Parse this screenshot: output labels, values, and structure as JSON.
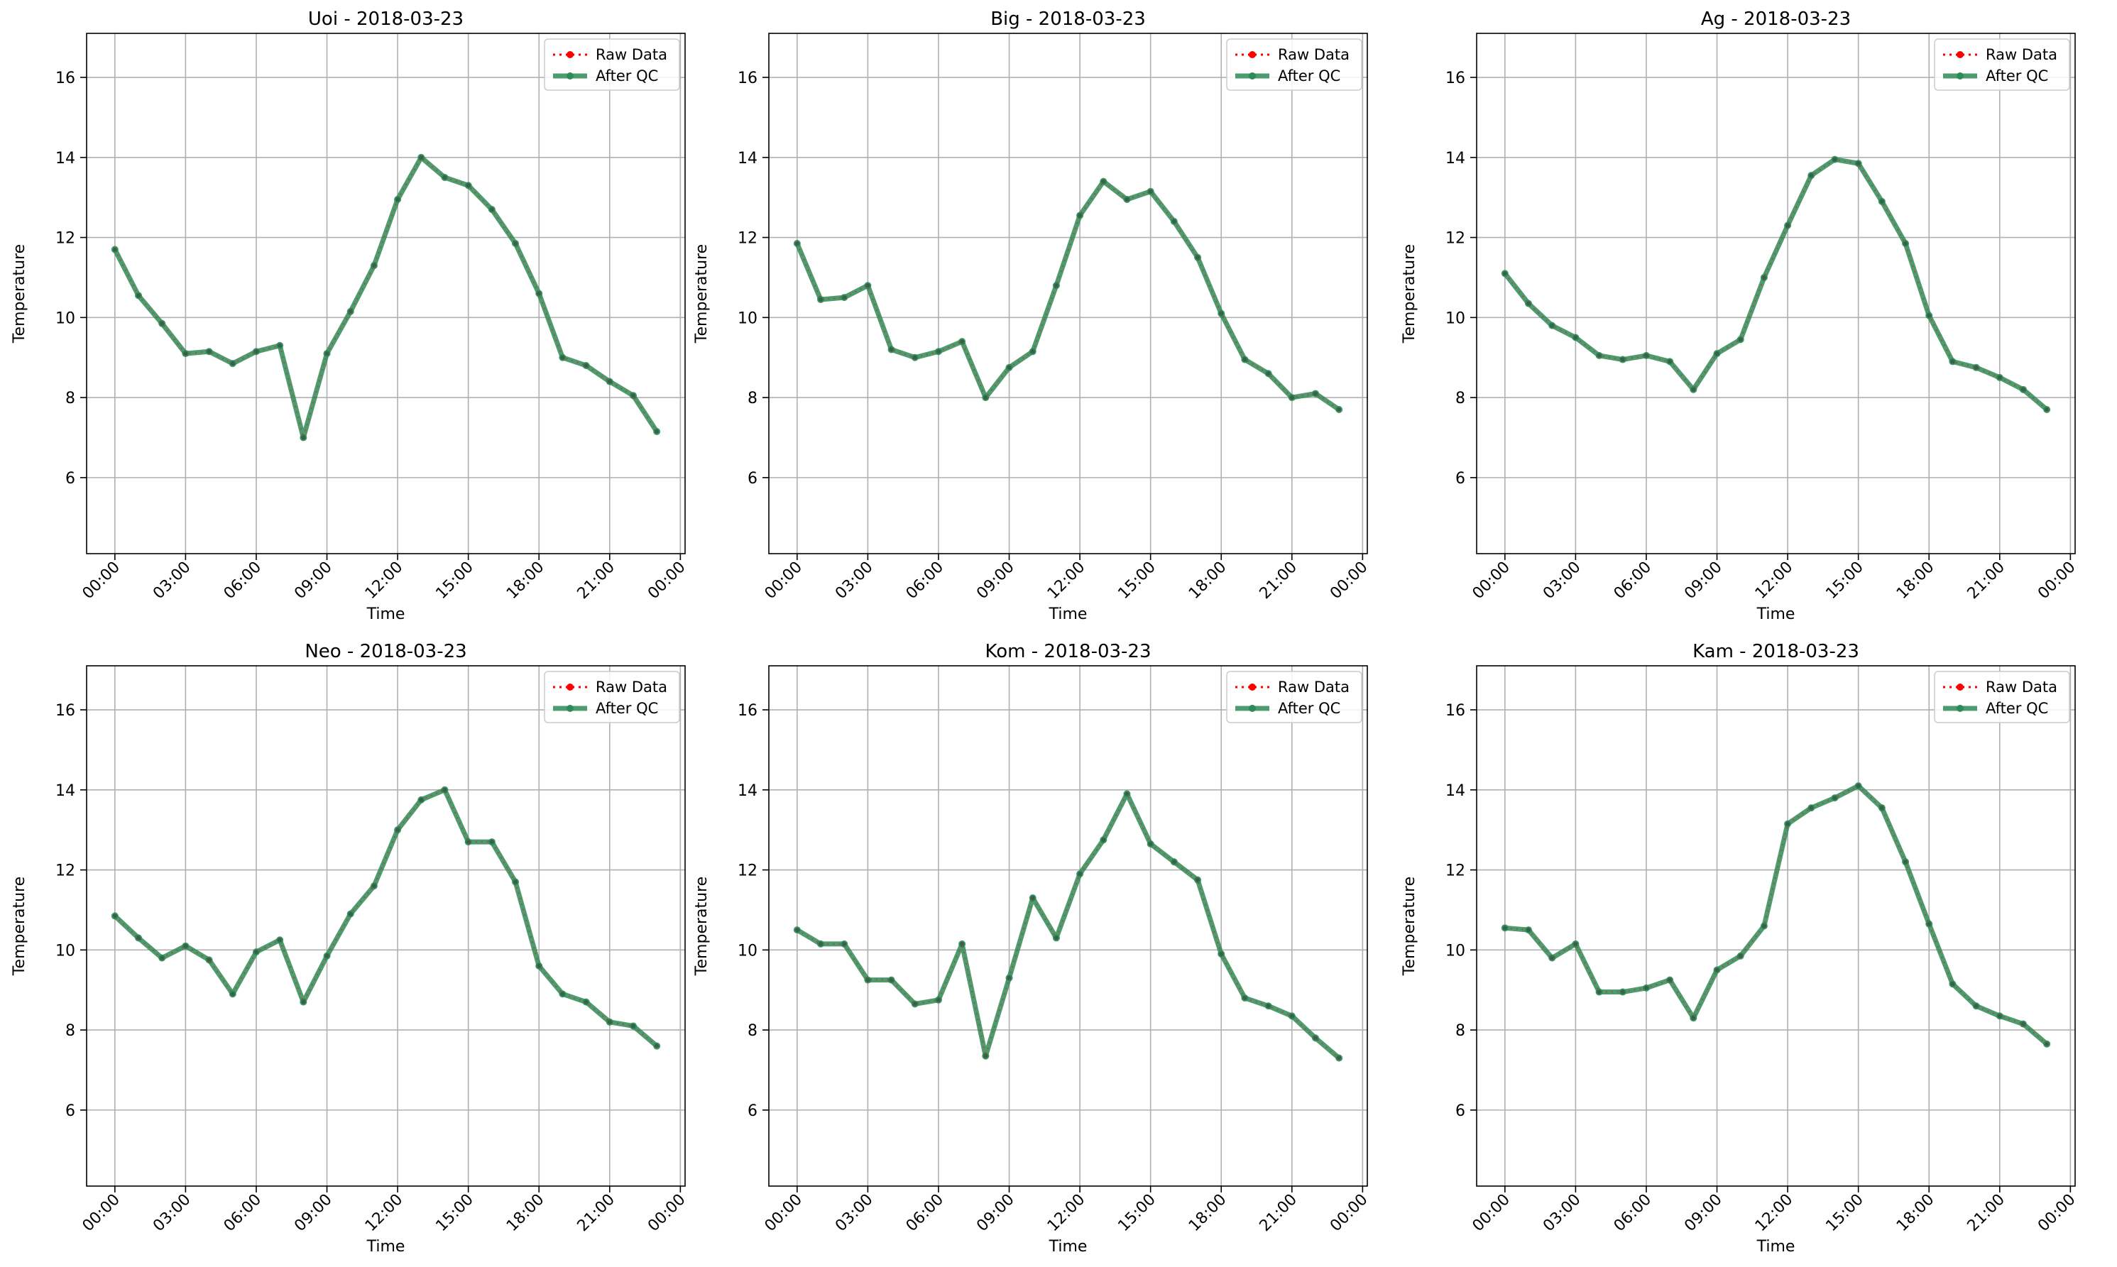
{
  "chart_data": [
    {
      "type": "line",
      "title": "Uoi - 2018-03-23",
      "xlabel": "Time",
      "ylabel": "Temperature",
      "ylim": [
        4.1,
        17.1
      ],
      "y_ticks": [
        6,
        8,
        10,
        12,
        14,
        16
      ],
      "xlim_hours": [
        -1.2,
        24.2
      ],
      "x_ticks": [
        "00:00",
        "03:00",
        "06:00",
        "09:00",
        "12:00",
        "15:00",
        "18:00",
        "21:00",
        "00:00"
      ],
      "grid": true,
      "legend_position": "top-right",
      "x_hours": [
        0,
        1,
        2,
        3,
        4,
        5,
        6,
        7,
        8,
        9,
        10,
        11,
        12,
        13,
        14,
        15,
        16,
        17,
        18,
        19,
        20,
        21,
        22,
        23
      ],
      "series": [
        {
          "name": "Raw Data",
          "values": [
            11.7,
            10.55,
            9.85,
            9.1,
            9.15,
            8.85,
            9.15,
            9.3,
            7.0,
            9.1,
            10.15,
            11.3,
            12.95,
            14.0,
            13.5,
            13.3,
            12.7,
            11.85,
            10.6,
            9.0,
            8.8,
            8.4,
            8.05,
            7.15
          ]
        },
        {
          "name": "After QC",
          "values": [
            11.7,
            10.55,
            9.85,
            9.1,
            9.15,
            8.85,
            9.15,
            9.3,
            7.0,
            9.1,
            10.15,
            11.3,
            12.95,
            14.0,
            13.5,
            13.3,
            12.7,
            11.85,
            10.6,
            9.0,
            8.8,
            8.4,
            8.05,
            7.15
          ]
        }
      ]
    },
    {
      "type": "line",
      "title": "Big - 2018-03-23",
      "xlabel": "Time",
      "ylabel": "Temperature",
      "ylim": [
        4.1,
        17.1
      ],
      "y_ticks": [
        6,
        8,
        10,
        12,
        14,
        16
      ],
      "xlim_hours": [
        -1.2,
        24.2
      ],
      "x_ticks": [
        "00:00",
        "03:00",
        "06:00",
        "09:00",
        "12:00",
        "15:00",
        "18:00",
        "21:00",
        "00:00"
      ],
      "grid": true,
      "legend_position": "top-right",
      "x_hours": [
        0,
        1,
        2,
        3,
        4,
        5,
        6,
        7,
        8,
        9,
        10,
        11,
        12,
        13,
        14,
        15,
        16,
        17,
        18,
        19,
        20,
        21,
        22,
        23
      ],
      "series": [
        {
          "name": "Raw Data",
          "values": [
            11.85,
            10.45,
            10.5,
            10.8,
            9.2,
            9.0,
            9.15,
            9.4,
            8.0,
            8.75,
            9.15,
            10.8,
            12.55,
            13.4,
            12.95,
            13.15,
            12.4,
            11.5,
            10.1,
            8.95,
            8.6,
            8.0,
            8.1,
            7.7
          ]
        },
        {
          "name": "After QC",
          "values": [
            11.85,
            10.45,
            10.5,
            10.8,
            9.2,
            9.0,
            9.15,
            9.4,
            8.0,
            8.75,
            9.15,
            10.8,
            12.55,
            13.4,
            12.95,
            13.15,
            12.4,
            11.5,
            10.1,
            8.95,
            8.6,
            8.0,
            8.1,
            7.7
          ]
        }
      ]
    },
    {
      "type": "line",
      "title": "Ag - 2018-03-23",
      "xlabel": "Time",
      "ylabel": "Temperature",
      "ylim": [
        4.1,
        17.1
      ],
      "y_ticks": [
        6,
        8,
        10,
        12,
        14,
        16
      ],
      "xlim_hours": [
        -1.2,
        24.2
      ],
      "x_ticks": [
        "00:00",
        "03:00",
        "06:00",
        "09:00",
        "12:00",
        "15:00",
        "18:00",
        "21:00",
        "00:00"
      ],
      "grid": true,
      "legend_position": "top-right",
      "x_hours": [
        0,
        1,
        2,
        3,
        4,
        5,
        6,
        7,
        8,
        9,
        10,
        11,
        12,
        13,
        14,
        15,
        16,
        17,
        18,
        19,
        20,
        21,
        22,
        23
      ],
      "series": [
        {
          "name": "Raw Data",
          "values": [
            11.1,
            10.35,
            9.8,
            9.5,
            9.05,
            8.95,
            9.05,
            8.9,
            8.2,
            9.1,
            9.45,
            11.0,
            12.3,
            13.55,
            13.95,
            13.85,
            12.9,
            11.85,
            10.05,
            8.9,
            8.75,
            8.5,
            8.2,
            7.7
          ]
        },
        {
          "name": "After QC",
          "values": [
            11.1,
            10.35,
            9.8,
            9.5,
            9.05,
            8.95,
            9.05,
            8.9,
            8.2,
            9.1,
            9.45,
            11.0,
            12.3,
            13.55,
            13.95,
            13.85,
            12.9,
            11.85,
            10.05,
            8.9,
            8.75,
            8.5,
            8.2,
            7.7
          ]
        }
      ]
    },
    {
      "type": "line",
      "title": "Neo - 2018-03-23",
      "xlabel": "Time",
      "ylabel": "Temperature",
      "ylim": [
        4.1,
        17.1
      ],
      "y_ticks": [
        6,
        8,
        10,
        12,
        14,
        16
      ],
      "xlim_hours": [
        -1.2,
        24.2
      ],
      "x_ticks": [
        "00:00",
        "03:00",
        "06:00",
        "09:00",
        "12:00",
        "15:00",
        "18:00",
        "21:00",
        "00:00"
      ],
      "grid": true,
      "legend_position": "top-right",
      "x_hours": [
        0,
        1,
        2,
        3,
        4,
        5,
        6,
        7,
        8,
        9,
        10,
        11,
        12,
        13,
        14,
        15,
        16,
        17,
        18,
        19,
        20,
        21,
        22,
        23
      ],
      "series": [
        {
          "name": "Raw Data",
          "values": [
            10.85,
            10.3,
            9.8,
            10.1,
            9.75,
            8.9,
            9.95,
            10.25,
            8.7,
            9.85,
            10.9,
            11.6,
            13.0,
            13.75,
            14.0,
            12.7,
            12.7,
            11.7,
            9.6,
            8.9,
            8.7,
            8.2,
            8.1,
            7.6
          ]
        },
        {
          "name": "After QC",
          "values": [
            10.85,
            10.3,
            9.8,
            10.1,
            9.75,
            8.9,
            9.95,
            10.25,
            8.7,
            9.85,
            10.9,
            11.6,
            13.0,
            13.75,
            14.0,
            12.7,
            12.7,
            11.7,
            9.6,
            8.9,
            8.7,
            8.2,
            8.1,
            7.6
          ]
        }
      ]
    },
    {
      "type": "line",
      "title": "Kom - 2018-03-23",
      "xlabel": "Time",
      "ylabel": "Temperature",
      "ylim": [
        4.1,
        17.1
      ],
      "y_ticks": [
        6,
        8,
        10,
        12,
        14,
        16
      ],
      "xlim_hours": [
        -1.2,
        24.2
      ],
      "x_ticks": [
        "00:00",
        "03:00",
        "06:00",
        "09:00",
        "12:00",
        "15:00",
        "18:00",
        "21:00",
        "00:00"
      ],
      "grid": true,
      "legend_position": "top-right",
      "x_hours": [
        0,
        1,
        2,
        3,
        4,
        5,
        6,
        7,
        8,
        9,
        10,
        11,
        12,
        13,
        14,
        15,
        16,
        17,
        18,
        19,
        20,
        21,
        22,
        23
      ],
      "series": [
        {
          "name": "Raw Data",
          "values": [
            10.5,
            10.15,
            10.15,
            9.25,
            9.25,
            8.65,
            8.75,
            10.15,
            7.35,
            9.3,
            11.3,
            10.3,
            11.9,
            12.75,
            13.9,
            12.65,
            12.2,
            11.75,
            9.9,
            8.8,
            8.6,
            8.35,
            7.8,
            7.3
          ]
        },
        {
          "name": "After QC",
          "values": [
            10.5,
            10.15,
            10.15,
            9.25,
            9.25,
            8.65,
            8.75,
            10.15,
            7.35,
            9.3,
            11.3,
            10.3,
            11.9,
            12.75,
            13.9,
            12.65,
            12.2,
            11.75,
            9.9,
            8.8,
            8.6,
            8.35,
            7.8,
            7.3
          ]
        }
      ]
    },
    {
      "type": "line",
      "title": "Kam - 2018-03-23",
      "xlabel": "Time",
      "ylabel": "Temperature",
      "ylim": [
        4.1,
        17.1
      ],
      "y_ticks": [
        6,
        8,
        10,
        12,
        14,
        16
      ],
      "xlim_hours": [
        -1.2,
        24.2
      ],
      "x_ticks": [
        "00:00",
        "03:00",
        "06:00",
        "09:00",
        "12:00",
        "15:00",
        "18:00",
        "21:00",
        "00:00"
      ],
      "grid": true,
      "legend_position": "top-right",
      "x_hours": [
        0,
        1,
        2,
        3,
        4,
        5,
        6,
        7,
        8,
        9,
        10,
        11,
        12,
        13,
        14,
        15,
        16,
        17,
        18,
        19,
        20,
        21,
        22,
        23
      ],
      "series": [
        {
          "name": "Raw Data",
          "values": [
            10.55,
            10.5,
            9.8,
            10.15,
            8.95,
            8.95,
            9.05,
            9.25,
            8.3,
            9.5,
            9.85,
            10.6,
            13.15,
            13.55,
            13.8,
            14.1,
            13.55,
            12.2,
            10.65,
            9.15,
            8.6,
            8.35,
            8.15,
            7.65
          ]
        },
        {
          "name": "After QC",
          "values": [
            10.55,
            10.5,
            9.8,
            10.15,
            8.95,
            8.95,
            9.05,
            9.25,
            8.3,
            9.5,
            9.85,
            10.6,
            13.15,
            13.55,
            13.8,
            14.1,
            13.55,
            12.2,
            10.65,
            9.15,
            8.6,
            8.35,
            8.15,
            7.65
          ]
        }
      ]
    }
  ],
  "colors": {
    "raw": "#ff0000",
    "after_qc": "#2e8b57",
    "grid": "#b0b0b0",
    "axes": "#000000",
    "legend_border": "#cccccc"
  }
}
